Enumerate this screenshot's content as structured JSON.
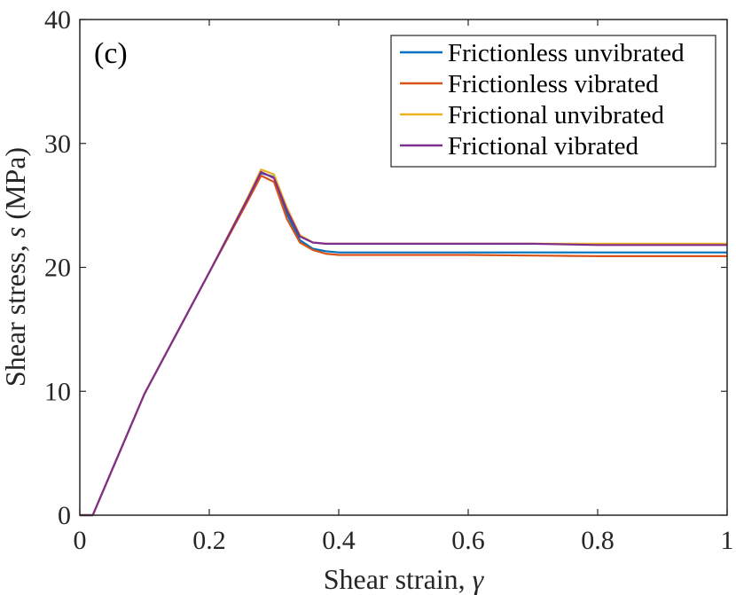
{
  "chart_data": {
    "type": "line",
    "title": "",
    "panel_label": "(c)",
    "xlabel_text": "Shear strain, ",
    "xlabel_symbol": "γ",
    "ylabel_text": "Shear stress, ",
    "ylabel_symbol": "s",
    "ylabel_unit": " (MPa)",
    "xlim": [
      0,
      1
    ],
    "ylim": [
      0,
      40
    ],
    "xticks": [
      0,
      0.2,
      0.4,
      0.6,
      0.8,
      1
    ],
    "xtick_labels": [
      "0",
      "0.2",
      "0.4",
      "0.6",
      "0.8",
      "1"
    ],
    "yticks": [
      0,
      10,
      20,
      30,
      40
    ],
    "ytick_labels": [
      "0",
      "10",
      "20",
      "30",
      "40"
    ],
    "grid": false,
    "legend_position": "top-right",
    "series": [
      {
        "name": "Frictionless unvibrated",
        "color": "#0072BD",
        "x": [
          0,
          0.02,
          0.1,
          0.2,
          0.26,
          0.28,
          0.3,
          0.32,
          0.34,
          0.36,
          0.38,
          0.4,
          0.5,
          0.6,
          0.7,
          0.8,
          0.9,
          1.0
        ],
        "y": [
          0,
          0,
          9.8,
          19.6,
          25.5,
          27.6,
          27.3,
          24.3,
          22.2,
          21.5,
          21.3,
          21.2,
          21.2,
          21.2,
          21.2,
          21.2,
          21.2,
          21.2
        ]
      },
      {
        "name": "Frictionless vibrated",
        "color": "#D95319",
        "x": [
          0,
          0.02,
          0.1,
          0.2,
          0.26,
          0.28,
          0.3,
          0.32,
          0.34,
          0.36,
          0.38,
          0.4,
          0.5,
          0.6,
          0.7,
          0.8,
          0.9,
          1.0
        ],
        "y": [
          0,
          0,
          9.8,
          19.6,
          25.4,
          27.4,
          26.9,
          23.9,
          22.0,
          21.4,
          21.1,
          21.0,
          21.0,
          21.0,
          20.95,
          20.9,
          20.9,
          20.9
        ]
      },
      {
        "name": "Frictional unvibrated",
        "color": "#EDB120",
        "x": [
          0,
          0.02,
          0.1,
          0.2,
          0.26,
          0.28,
          0.3,
          0.32,
          0.34,
          0.36,
          0.38,
          0.4,
          0.5,
          0.6,
          0.7,
          0.8,
          0.9,
          1.0
        ],
        "y": [
          0,
          0,
          9.8,
          19.6,
          25.7,
          27.9,
          27.5,
          24.8,
          22.6,
          22.0,
          21.9,
          21.9,
          21.9,
          21.9,
          21.9,
          21.9,
          21.9,
          21.9
        ]
      },
      {
        "name": "Frictional vibrated",
        "color": "#7E2F8E",
        "x": [
          0,
          0.02,
          0.1,
          0.2,
          0.26,
          0.28,
          0.3,
          0.32,
          0.34,
          0.36,
          0.38,
          0.4,
          0.5,
          0.6,
          0.7,
          0.8,
          0.9,
          1.0
        ],
        "y": [
          0,
          0,
          9.8,
          19.6,
          25.6,
          27.7,
          27.2,
          24.6,
          22.5,
          22.0,
          21.9,
          21.9,
          21.9,
          21.9,
          21.9,
          21.8,
          21.8,
          21.8
        ]
      }
    ]
  }
}
